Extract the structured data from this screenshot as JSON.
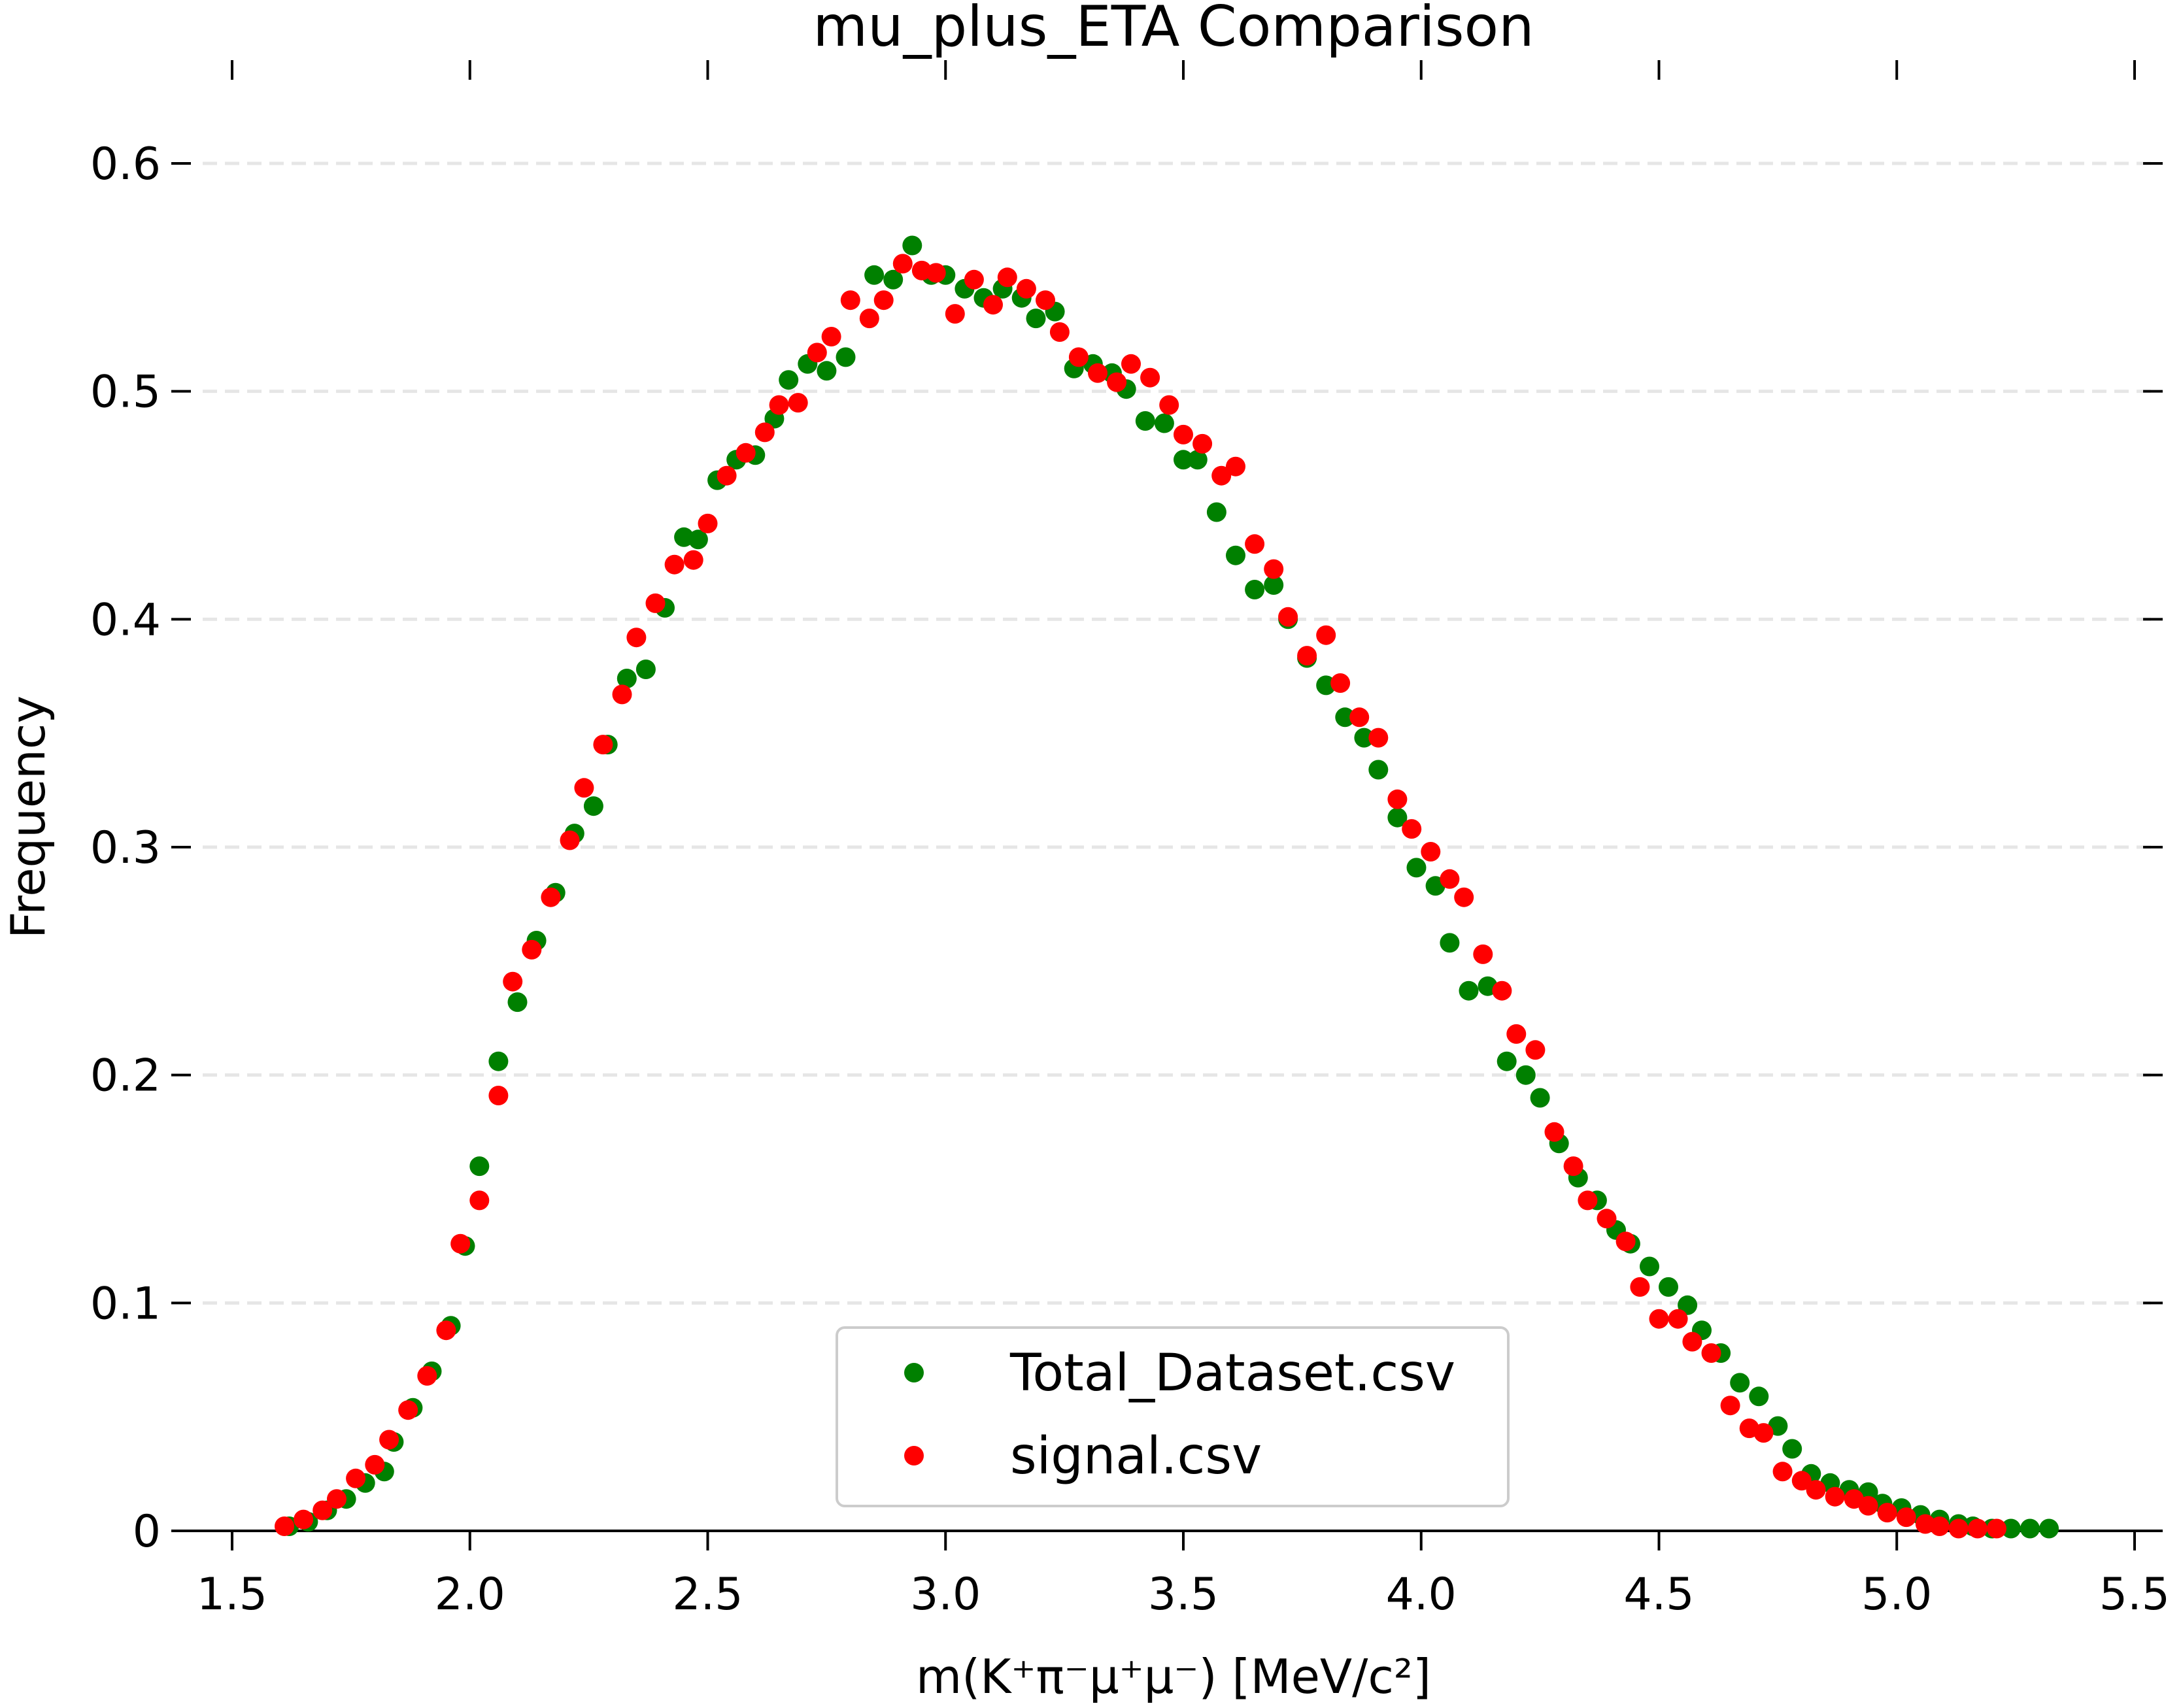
{
  "chart_data": {
    "type": "scatter",
    "title": "mu_plus_ETA Comparison",
    "xlabel": "m(K⁺π⁻μ⁺μ⁻) [MeV/c²]",
    "ylabel": "Frequency",
    "xlim": [
      1.5,
      5.5
    ],
    "ylim": [
      0,
      0.6
    ],
    "xticks": [
      "1.5",
      "2.0",
      "2.5",
      "3.0",
      "3.5",
      "4.0",
      "4.5",
      "5.0",
      "5.5"
    ],
    "yticks": [
      "0",
      "0.1",
      "0.2",
      "0.3",
      "0.4",
      "0.5",
      "0.6"
    ],
    "grid": "horizontal-dashed",
    "legend_position": "bottom-center",
    "colors": {
      "Total_Dataset.csv": "#008000",
      "signal.csv": "#ff0000"
    },
    "series": [
      {
        "name": "Total_Dataset.csv",
        "color": "#008000",
        "x": [
          1.62,
          1.66,
          1.7,
          1.74,
          1.78,
          1.82,
          1.84,
          1.88,
          1.92,
          1.96,
          1.99,
          2.02,
          2.06,
          2.1,
          2.14,
          2.18,
          2.22,
          2.26,
          2.29,
          2.33,
          2.37,
          2.41,
          2.45,
          2.48,
          2.52,
          2.56,
          2.6,
          2.64,
          2.67,
          2.71,
          2.75,
          2.79,
          2.85,
          2.89,
          2.93,
          2.97,
          3.0,
          3.04,
          3.08,
          3.12,
          3.16,
          3.19,
          3.23,
          3.27,
          3.31,
          3.35,
          3.38,
          3.42,
          3.46,
          3.5,
          3.53,
          3.57,
          3.61,
          3.65,
          3.69,
          3.72,
          3.76,
          3.8,
          3.84,
          3.88,
          3.91,
          3.95,
          3.99,
          4.03,
          4.06,
          4.1,
          4.14,
          4.18,
          4.22,
          4.25,
          4.29,
          4.33,
          4.37,
          4.41,
          4.44,
          4.48,
          4.52,
          4.56,
          4.59,
          4.63,
          4.67,
          4.71,
          4.75,
          4.78,
          4.82,
          4.86,
          4.9,
          4.94,
          4.97,
          5.01,
          5.05,
          5.09,
          5.13,
          5.16,
          5.2,
          5.24,
          5.28,
          5.32
        ],
        "y": [
          0.002,
          0.004,
          0.009,
          0.014,
          0.021,
          0.026,
          0.039,
          0.054,
          0.07,
          0.09,
          0.125,
          0.16,
          0.206,
          0.232,
          0.259,
          0.28,
          0.306,
          0.318,
          0.345,
          0.374,
          0.378,
          0.405,
          0.436,
          0.435,
          0.461,
          0.47,
          0.472,
          0.488,
          0.505,
          0.512,
          0.509,
          0.515,
          0.551,
          0.549,
          0.564,
          0.551,
          0.551,
          0.545,
          0.541,
          0.545,
          0.541,
          0.532,
          0.535,
          0.51,
          0.512,
          0.508,
          0.501,
          0.487,
          0.486,
          0.47,
          0.47,
          0.447,
          0.428,
          0.413,
          0.415,
          0.4,
          0.383,
          0.371,
          0.357,
          0.348,
          0.334,
          0.313,
          0.291,
          0.283,
          0.258,
          0.237,
          0.239,
          0.206,
          0.2,
          0.19,
          0.17,
          0.155,
          0.145,
          0.132,
          0.126,
          0.116,
          0.107,
          0.099,
          0.088,
          0.078,
          0.065,
          0.059,
          0.046,
          0.036,
          0.025,
          0.021,
          0.018,
          0.017,
          0.012,
          0.01,
          0.007,
          0.005,
          0.003,
          0.002,
          0.001,
          0.001,
          0.001,
          0.001
        ]
      },
      {
        "name": "signal.csv",
        "color": "#ff0000",
        "x": [
          1.61,
          1.65,
          1.69,
          1.72,
          1.76,
          1.8,
          1.83,
          1.87,
          1.91,
          1.95,
          1.98,
          2.02,
          2.06,
          2.09,
          2.13,
          2.17,
          2.21,
          2.24,
          2.28,
          2.32,
          2.35,
          2.39,
          2.43,
          2.47,
          2.5,
          2.54,
          2.58,
          2.62,
          2.65,
          2.69,
          2.73,
          2.76,
          2.8,
          2.84,
          2.87,
          2.91,
          2.95,
          2.98,
          3.02,
          3.06,
          3.1,
          3.13,
          3.17,
          3.21,
          3.24,
          3.28,
          3.32,
          3.36,
          3.39,
          3.43,
          3.47,
          3.5,
          3.54,
          3.58,
          3.61,
          3.65,
          3.69,
          3.72,
          3.76,
          3.8,
          3.83,
          3.87,
          3.91,
          3.95,
          3.98,
          4.02,
          4.06,
          4.09,
          4.13,
          4.17,
          4.2,
          4.24,
          4.28,
          4.32,
          4.35,
          4.39,
          4.43,
          4.46,
          4.5,
          4.54,
          4.57,
          4.61,
          4.65,
          4.69,
          4.72,
          4.76,
          4.8,
          4.83,
          4.87,
          4.91,
          4.94,
          4.98,
          5.02,
          5.06,
          5.09,
          5.13,
          5.17,
          5.21
        ],
        "y": [
          0.002,
          0.005,
          0.009,
          0.014,
          0.023,
          0.029,
          0.04,
          0.053,
          0.068,
          0.088,
          0.126,
          0.145,
          0.191,
          0.241,
          0.255,
          0.278,
          0.303,
          0.326,
          0.345,
          0.367,
          0.392,
          0.407,
          0.424,
          0.426,
          0.442,
          0.463,
          0.473,
          0.482,
          0.494,
          0.495,
          0.517,
          0.524,
          0.54,
          0.532,
          0.54,
          0.556,
          0.553,
          0.552,
          0.534,
          0.549,
          0.538,
          0.55,
          0.545,
          0.54,
          0.526,
          0.515,
          0.508,
          0.504,
          0.512,
          0.506,
          0.494,
          0.481,
          0.477,
          0.463,
          0.467,
          0.433,
          0.422,
          0.401,
          0.384,
          0.393,
          0.372,
          0.357,
          0.348,
          0.321,
          0.308,
          0.298,
          0.286,
          0.278,
          0.253,
          0.237,
          0.218,
          0.211,
          0.175,
          0.16,
          0.145,
          0.137,
          0.127,
          0.107,
          0.093,
          0.093,
          0.083,
          0.078,
          0.055,
          0.045,
          0.043,
          0.026,
          0.022,
          0.018,
          0.015,
          0.014,
          0.011,
          0.008,
          0.006,
          0.003,
          0.002,
          0.001,
          0.001,
          0.001
        ]
      }
    ]
  }
}
